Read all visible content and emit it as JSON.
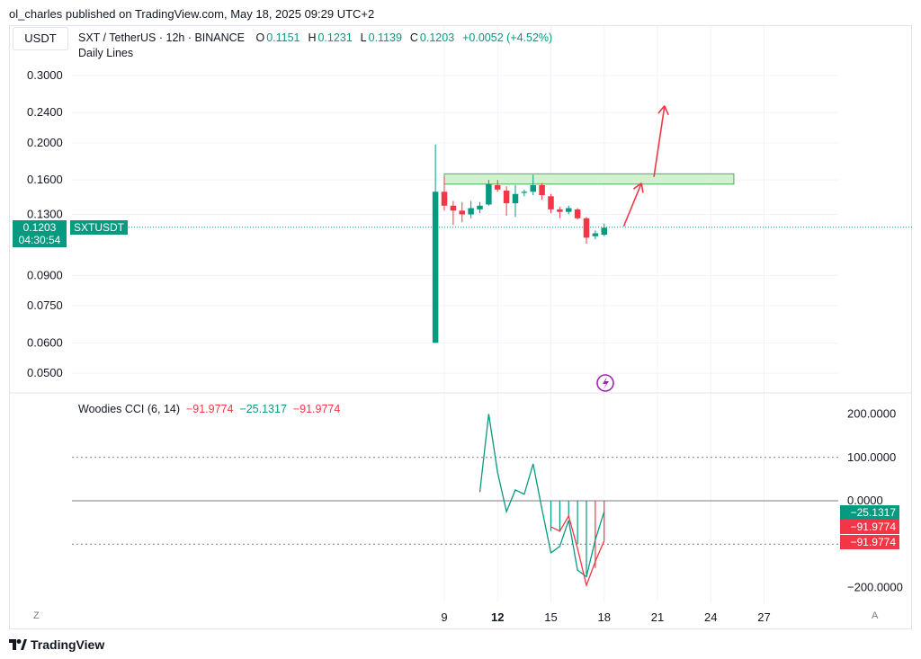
{
  "header": {
    "text": "ol_charles published on TradingView.com, May 18, 2025 09:29 UTC+2"
  },
  "currency_button": "USDT",
  "legend": {
    "symbol": "SXT / TetherUS · 12h · BINANCE",
    "o_label": "O",
    "o": "0.1151",
    "h_label": "H",
    "h": "0.1231",
    "l_label": "L",
    "l": "0.1139",
    "c_label": "C",
    "c": "0.1203",
    "change": "+0.0052 (+4.52%)",
    "drawing": "Daily Lines"
  },
  "price_tag": {
    "price": "0.1203",
    "countdown": "04:30:54",
    "symbol": "SXTUSDT"
  },
  "cci_legend": {
    "name": "Woodies CCI (6, 14)",
    "v1": "−91.9774",
    "v2": "−25.1317",
    "v3": "−91.9774"
  },
  "cci_tags": [
    "−25.1317",
    "−91.9774",
    "−91.9774"
  ],
  "footer": {
    "logo": "TradingView"
  },
  "buttons": {
    "z": "Z",
    "a": "A"
  },
  "colors": {
    "up": "#089981",
    "down": "#f23645",
    "zone_fill": "#d4f0d1",
    "zone_border": "#4caf50",
    "arrow": "#f23645"
  },
  "chart_data": [
    {
      "type": "candlestick",
      "price_axis": {
        "scale": "log",
        "ticks": [
          0.3,
          0.24,
          0.2,
          0.16,
          0.13,
          0.09,
          0.075,
          0.06,
          0.05
        ],
        "tick_labels": [
          "0.3000",
          "0.2400",
          "0.2000",
          "0.1600",
          "0.1300",
          "0.0900",
          "0.0750",
          "0.0600",
          "0.0500"
        ]
      },
      "time_axis": {
        "ticks": [
          9,
          12,
          15,
          18,
          21,
          24,
          27
        ],
        "tick_labels": [
          "9",
          "12",
          "15",
          "18",
          "21",
          "24",
          "27"
        ],
        "bold": [
          12
        ]
      },
      "candles": [
        {
          "t": 8.5,
          "o": 0.06,
          "h": 0.198,
          "l": 0.06,
          "c": 0.149
        },
        {
          "t": 9.0,
          "o": 0.149,
          "h": 0.163,
          "l": 0.133,
          "c": 0.137
        },
        {
          "t": 9.5,
          "o": 0.137,
          "h": 0.141,
          "l": 0.122,
          "c": 0.133
        },
        {
          "t": 10.0,
          "o": 0.133,
          "h": 0.14,
          "l": 0.124,
          "c": 0.13
        },
        {
          "t": 10.5,
          "o": 0.13,
          "h": 0.141,
          "l": 0.127,
          "c": 0.135
        },
        {
          "t": 11.0,
          "o": 0.134,
          "h": 0.14,
          "l": 0.131,
          "c": 0.137
        },
        {
          "t": 11.5,
          "o": 0.138,
          "h": 0.16,
          "l": 0.137,
          "c": 0.156
        },
        {
          "t": 12.0,
          "o": 0.155,
          "h": 0.16,
          "l": 0.149,
          "c": 0.151
        },
        {
          "t": 12.5,
          "o": 0.15,
          "h": 0.154,
          "l": 0.129,
          "c": 0.139
        },
        {
          "t": 13.0,
          "o": 0.139,
          "h": 0.155,
          "l": 0.128,
          "c": 0.147
        },
        {
          "t": 13.5,
          "o": 0.148,
          "h": 0.151,
          "l": 0.145,
          "c": 0.149
        },
        {
          "t": 14.0,
          "o": 0.149,
          "h": 0.165,
          "l": 0.146,
          "c": 0.155
        },
        {
          "t": 14.5,
          "o": 0.155,
          "h": 0.157,
          "l": 0.142,
          "c": 0.146
        },
        {
          "t": 15.0,
          "o": 0.145,
          "h": 0.147,
          "l": 0.131,
          "c": 0.134
        },
        {
          "t": 15.5,
          "o": 0.134,
          "h": 0.136,
          "l": 0.127,
          "c": 0.132
        },
        {
          "t": 16.0,
          "o": 0.132,
          "h": 0.137,
          "l": 0.13,
          "c": 0.135
        },
        {
          "t": 16.5,
          "o": 0.134,
          "h": 0.135,
          "l": 0.126,
          "c": 0.127
        },
        {
          "t": 17.0,
          "o": 0.127,
          "h": 0.128,
          "l": 0.109,
          "c": 0.113
        },
        {
          "t": 17.5,
          "o": 0.114,
          "h": 0.118,
          "l": 0.112,
          "c": 0.116
        },
        {
          "t": 18.0,
          "o": 0.115,
          "h": 0.123,
          "l": 0.114,
          "c": 0.12
        }
      ],
      "current_price": 0.1203,
      "zone": {
        "t_start": 9.0,
        "t_end": 25.3,
        "price_low": 0.156,
        "price_high": 0.166
      },
      "arrows": [
        {
          "from": [
            19.1,
            0.121
          ],
          "to": [
            20.1,
            0.157
          ]
        },
        {
          "from": [
            20.8,
            0.163
          ],
          "to": [
            21.4,
            0.25
          ]
        }
      ]
    },
    {
      "type": "line",
      "title": "Woodies CCI (6, 14)",
      "y_axis": {
        "ticks": [
          200,
          100,
          0,
          -200
        ],
        "tick_labels": [
          "200.0000",
          "100.0000",
          "0.0000",
          "−200.0000"
        ],
        "dotted": [
          100,
          -100
        ]
      },
      "series": [
        {
          "color": "#089981",
          "points": [
            [
              11.0,
              20
            ],
            [
              11.5,
              200
            ],
            [
              12.0,
              65
            ],
            [
              12.5,
              -25
            ],
            [
              13.0,
              25
            ],
            [
              13.5,
              15
            ],
            [
              14.0,
              85
            ],
            [
              14.5,
              -20
            ],
            [
              15.0,
              -120
            ],
            [
              15.5,
              -105
            ],
            [
              16.0,
              -45
            ],
            [
              16.5,
              -160
            ],
            [
              17.0,
              -175
            ],
            [
              17.5,
              -90
            ],
            [
              18.0,
              -25
            ]
          ]
        },
        {
          "color": "#f23645",
          "points": [
            [
              15.0,
              -60
            ],
            [
              15.5,
              -70
            ],
            [
              16.0,
              -35
            ],
            [
              16.5,
              -110
            ],
            [
              17.0,
              -195
            ],
            [
              17.5,
              -140
            ],
            [
              18.0,
              -92
            ]
          ]
        }
      ],
      "histogram": [
        {
          "t": 15.0,
          "v": -70,
          "color": "#089981"
        },
        {
          "t": 15.5,
          "v": -70,
          "color": "#089981"
        },
        {
          "t": 16.0,
          "v": -35,
          "color": "#089981"
        },
        {
          "t": 16.5,
          "v": -100,
          "color": "#089981"
        },
        {
          "t": 17.0,
          "v": -170,
          "color": "#089981"
        },
        {
          "t": 17.5,
          "v": -155,
          "color": "#f23645"
        },
        {
          "t": 18.0,
          "v": -92,
          "color": "#f23645"
        }
      ]
    }
  ]
}
